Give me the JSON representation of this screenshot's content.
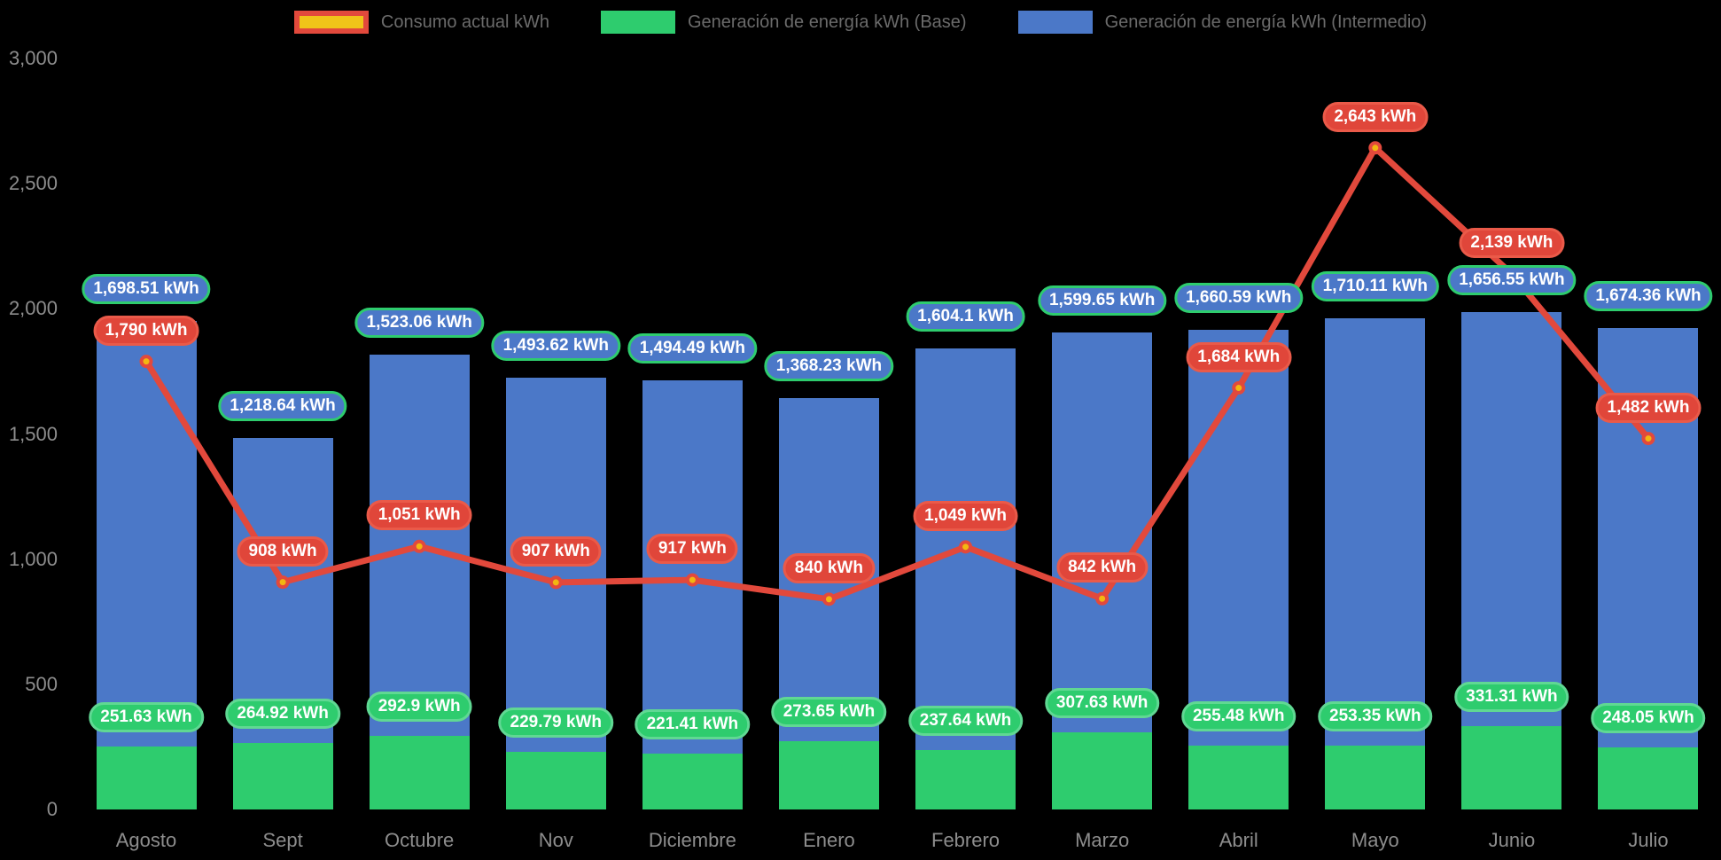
{
  "chart_data": {
    "type": "bar",
    "subtype": "stacked-bars-with-line-overlay",
    "title": "",
    "xlabel": "",
    "ylabel": "",
    "ylim": [
      0,
      3000
    ],
    "ytick_values": [
      0,
      500,
      1000,
      1500,
      2000,
      2500,
      3000
    ],
    "ytick_labels": [
      "0",
      "500",
      "1,000",
      "1,500",
      "2,000",
      "2,500",
      "3,000"
    ],
    "grid": false,
    "legend_position": "top-center",
    "categories": [
      "Agosto",
      "Sept",
      "Octubre",
      "Nov",
      "Diciembre",
      "Enero",
      "Febrero",
      "Marzo",
      "Abril",
      "Mayo",
      "Junio",
      "Julio"
    ],
    "series": [
      {
        "name": "Consumo actual kWh",
        "type": "line",
        "line_color": "#e2493c",
        "point_color": "#f2b711",
        "label_bg": "#e0463a",
        "values": [
          1790,
          908,
          1051,
          907,
          917,
          840,
          1049,
          842,
          1684,
          2643,
          2139,
          1482
        ],
        "labels": [
          "1,790 kWh",
          "908 kWh",
          "1,051 kWh",
          "907 kWh",
          "917 kWh",
          "840 kWh",
          "1,049 kWh",
          "842 kWh",
          "1,684 kWh",
          "2,643 kWh",
          "2,139 kWh",
          "1,482 kWh"
        ]
      },
      {
        "name": "Generación de energía kWh (Base)",
        "type": "bar",
        "color": "#2ecc6e",
        "label_bg": "#2ecc6e",
        "values": [
          251.63,
          264.92,
          292.9,
          229.79,
          221.41,
          273.65,
          237.64,
          307.63,
          255.48,
          253.35,
          331.31,
          248.05
        ],
        "labels": [
          "251.63 kWh",
          "264.92 kWh",
          "292.9 kWh",
          "229.79 kWh",
          "221.41 kWh",
          "273.65 kWh",
          "237.64 kWh",
          "307.63 kWh",
          "255.48 kWh",
          "253.35 kWh",
          "331.31 kWh",
          "248.05 kWh"
        ]
      },
      {
        "name": "Generación de energía kWh (Intermedio)",
        "type": "bar",
        "color": "#4b78c8",
        "label_bg": "#4b78c8",
        "values": [
          1698.51,
          1218.64,
          1523.06,
          1493.62,
          1494.49,
          1368.23,
          1604.1,
          1599.65,
          1660.59,
          1710.11,
          1656.55,
          1674.36
        ],
        "labels": [
          "1,698.51 kWh",
          "1,218.64 kWh",
          "1,523.06 kWh",
          "1,493.62 kWh",
          "1,494.49 kWh",
          "1,368.23 kWh",
          "1,604.1 kWh",
          "1,599.65 kWh",
          "1,660.59 kWh",
          "1,710.11 kWh",
          "1,656.55 kWh",
          "1,674.36 kWh"
        ]
      }
    ],
    "colors": {
      "background": "#000000",
      "axis_text": "#8d8d8d",
      "legend_text": "#6b6b6b",
      "legend_consumo_fill": "#f0c419",
      "legend_consumo_border": "#e2493c",
      "pill_text": "#ffffff",
      "pill_intermedio_border": "#2ecc6e",
      "pill_base_border": "#60d893",
      "pill_consumo_border": "#ea5a49"
    }
  }
}
